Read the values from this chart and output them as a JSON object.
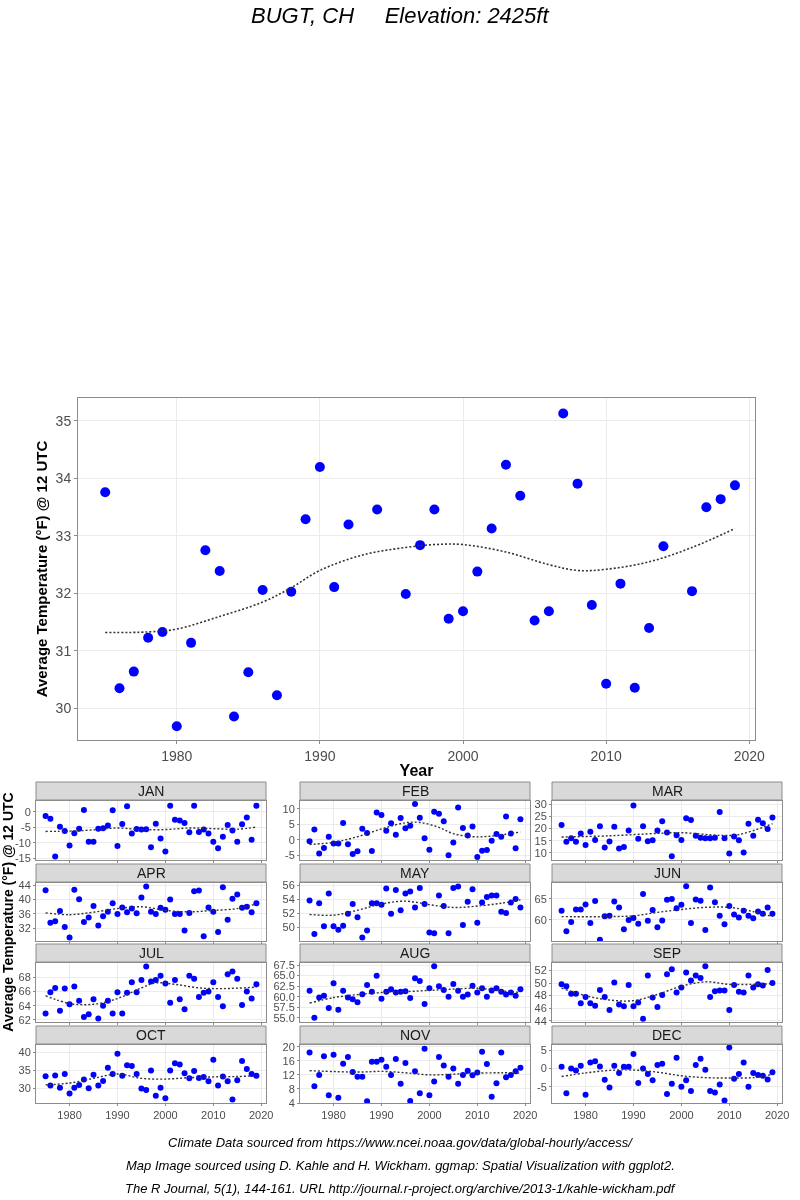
{
  "chart_data": [
    {
      "type": "scatter",
      "title": "BUGT, CH     Elevation: 2425ft",
      "xlabel": "Year",
      "ylabel": "Average Temperature (°F) @ 12 UTC",
      "grid": true,
      "x": [
        1975,
        1976,
        1977,
        1978,
        1979,
        1980,
        1981,
        1982,
        1983,
        1984,
        1985,
        1986,
        1987,
        1988,
        1989,
        1990,
        1991,
        1992,
        1993,
        1994,
        1995,
        1996,
        1997,
        1998,
        1999,
        2000,
        2001,
        2002,
        2003,
        2004,
        2005,
        2006,
        2007,
        2008,
        2009,
        2010,
        2011,
        2012,
        2013,
        2014,
        2015,
        2016,
        2017,
        2018,
        2019
      ],
      "xlim": [
        1973.1,
        2020.4
      ],
      "xticks": [
        1980,
        1990,
        2000,
        2010,
        2020
      ],
      "ylim": [
        29.45,
        35.4
      ],
      "yticks": [
        30,
        31,
        32,
        33,
        34,
        35
      ],
      "series": [
        {
          "color": "#0000ff",
          "marker": "circle",
          "values": [
            33.76,
            30.35,
            30.64,
            31.23,
            31.33,
            29.69,
            31.14,
            32.75,
            32.39,
            29.86,
            30.63,
            32.06,
            30.23,
            32.03,
            33.29,
            34.2,
            32.11,
            33.2,
            null,
            33.46,
            null,
            31.99,
            32.84,
            33.46,
            31.56,
            31.69,
            32.38,
            33.13,
            34.24,
            33.7,
            31.53,
            31.69,
            35.13,
            33.91,
            31.8,
            30.43,
            32.17,
            30.36,
            31.4,
            32.82,
            null,
            32.04,
            33.5,
            33.64,
            33.88
          ]
        },
        {
          "type": "line",
          "color": "#333333",
          "line_style": "dotted",
          "x": [
            1975,
            1978,
            1980,
            1983,
            1986,
            1988,
            1990,
            1993,
            1996,
            1998,
            2000,
            2003,
            2006,
            2008,
            2010,
            2013,
            2016,
            2019
          ],
          "values": [
            31.32,
            31.33,
            31.38,
            31.6,
            31.85,
            32.1,
            32.4,
            32.67,
            32.8,
            32.85,
            32.85,
            32.72,
            32.5,
            32.4,
            32.42,
            32.55,
            32.8,
            33.13
          ]
        }
      ],
      "annotations": [
        "Climate Data sourced from https://www.ncei.noaa.gov/data/global-hourly/access/",
        "Map Image sourced using D. Kahle and H. Wickham. ggmap: Spatial Visualization with ggplot2.",
        "The R Journal, 5(1), 144-161. URL http://journal.r-project.org/archive/2013-1/kahle-wickham.pdf"
      ]
    },
    {
      "type": "scatter",
      "title": "JAN",
      "grid": true,
      "tick_labels": "y",
      "x": [
        1975,
        1976,
        1977,
        1978,
        1979,
        1980,
        1981,
        1982,
        1983,
        1984,
        1985,
        1986,
        1987,
        1988,
        1989,
        1990,
        1991,
        1992,
        1993,
        1994,
        1995,
        1996,
        1997,
        1998,
        1999,
        2000,
        2001,
        2002,
        2003,
        2004,
        2005,
        2006,
        2007,
        2008,
        2009,
        2010,
        2011,
        2012,
        2013,
        2014,
        2015,
        2016,
        2017,
        2018,
        2019
      ],
      "xlim": [
        1973,
        2021
      ],
      "xticks": [
        1980,
        1990,
        2000,
        2010,
        2020
      ],
      "ylim": [
        -15.5,
        3.5
      ],
      "yticks": [
        -15,
        -10,
        -5,
        0
      ],
      "series": [
        {
          "color": "#0000ff",
          "marker": "circle",
          "values": [
            -1.3,
            -2.2,
            -14.4,
            -4.8,
            -6.2,
            -10.8,
            -6.9,
            -5.4,
            0.6,
            -9.6,
            -9.6,
            -5.4,
            -5.3,
            -4.4,
            0.5,
            -11,
            -3.9,
            1.8,
            -7,
            -5.5,
            -5.7,
            -5.6,
            -11.4,
            -3.8,
            -8.6,
            -12.8,
            2,
            -2.5,
            -2.8,
            -3.6,
            -6.6,
            2,
            -6.5,
            -5.7,
            -7,
            -9.6,
            -11.7,
            -8,
            -4.2,
            -6,
            -9.6,
            -4,
            -1.8,
            -9,
            2
          ]
        },
        {
          "type": "line",
          "color": "#333333",
          "line_style": "dotted",
          "x": [
            1975,
            1980,
            1985,
            1990,
            1995,
            2000,
            2005,
            2010,
            2015,
            2019
          ],
          "values": [
            -6.3,
            -6.2,
            -5.8,
            -5.2,
            -5.7,
            -5.7,
            -5.2,
            -5.4,
            -5.6,
            -4.9
          ]
        }
      ]
    },
    {
      "type": "scatter",
      "title": "FEB",
      "grid": true,
      "tick_labels": "y",
      "x": [
        1975,
        1976,
        1977,
        1978,
        1979,
        1980,
        1981,
        1982,
        1983,
        1984,
        1985,
        1986,
        1987,
        1988,
        1989,
        1990,
        1991,
        1992,
        1993,
        1994,
        1995,
        1996,
        1997,
        1998,
        1999,
        2000,
        2001,
        2002,
        2003,
        2004,
        2005,
        2006,
        2007,
        2008,
        2009,
        2010,
        2011,
        2012,
        2013,
        2014,
        2015,
        2016,
        2017,
        2018,
        2019
      ],
      "xlim": [
        1973,
        2021
      ],
      "xticks": [
        1980,
        1990,
        2000,
        2010,
        2020
      ],
      "ylim": [
        -6.5,
        12.5
      ],
      "yticks": [
        -5,
        0,
        5,
        10
      ],
      "series": [
        {
          "color": "#0000ff",
          "marker": "circle",
          "values": [
            -0.5,
            3.3,
            -4.4,
            -2.6,
            1,
            -1.2,
            -1.2,
            5.4,
            -1.4,
            -4.6,
            -3.7,
            3.6,
            2.2,
            -3.6,
            8.8,
            8,
            2.9,
            5.3,
            1.6,
            7,
            3.7,
            4.5,
            11.5,
            7.1,
            0.5,
            -3.2,
            9,
            8.4,
            6,
            -5,
            -0.9,
            10.4,
            3.8,
            1.4,
            4.3,
            -5.5,
            -3.5,
            -3.3,
            -0.3,
            1.9,
            1,
            7.5,
            2,
            -2.7,
            6.6
          ]
        },
        {
          "type": "line",
          "color": "#333333",
          "line_style": "dotted",
          "x": [
            1975,
            1980,
            1985,
            1990,
            1995,
            1998,
            2002,
            2005,
            2009,
            2013,
            2019
          ],
          "values": [
            -1.5,
            -0.8,
            1,
            3.5,
            5.5,
            5.6,
            4,
            2,
            1,
            1.2,
            2.5
          ]
        }
      ]
    },
    {
      "type": "scatter",
      "title": "MAR",
      "grid": true,
      "tick_labels": "y",
      "x": [
        1975,
        1976,
        1977,
        1978,
        1979,
        1980,
        1981,
        1982,
        1983,
        1984,
        1985,
        1986,
        1987,
        1988,
        1989,
        1990,
        1991,
        1992,
        1993,
        1994,
        1995,
        1996,
        1997,
        1998,
        1999,
        2000,
        2001,
        2002,
        2003,
        2004,
        2005,
        2006,
        2007,
        2008,
        2009,
        2010,
        2011,
        2012,
        2013,
        2014,
        2015,
        2016,
        2017,
        2018,
        2019
      ],
      "xlim": [
        1973,
        2021
      ],
      "xticks": [
        1980,
        1990,
        2000,
        2010,
        2020
      ],
      "ylim": [
        7,
        31.4
      ],
      "yticks": [
        10,
        15,
        20,
        25,
        30
      ],
      "series": [
        {
          "color": "#0000ff",
          "marker": "circle",
          "values": [
            21.5,
            14.5,
            16,
            14.5,
            18,
            13.2,
            18.7,
            15.3,
            21,
            12.2,
            14.7,
            20.8,
            11.8,
            12.4,
            19.2,
            29.5,
            15.8,
            21,
            14.8,
            15.2,
            19.2,
            23,
            18.4,
            8.5,
            17.2,
            15.3,
            24.3,
            23.5,
            17,
            16.2,
            16,
            16,
            16.2,
            26.8,
            16,
            9.7,
            16.7,
            15.2,
            10.1,
            22,
            17,
            23.6,
            22.2,
            19.8,
            24.6
          ]
        },
        {
          "type": "line",
          "color": "#333333",
          "line_style": "dotted",
          "x": [
            1975,
            1985,
            1995,
            2000,
            2008,
            2012,
            2019
          ],
          "values": [
            16.5,
            17,
            18,
            18.3,
            17.2,
            17.5,
            22
          ]
        }
      ]
    },
    {
      "type": "scatter",
      "title": "APR",
      "ylabel": "Average Temperature (°F) @ 12 UTC",
      "grid": true,
      "tick_labels": "y",
      "x": [
        1975,
        1976,
        1977,
        1978,
        1979,
        1980,
        1981,
        1982,
        1983,
        1984,
        1985,
        1986,
        1987,
        1988,
        1989,
        1990,
        1991,
        1992,
        1993,
        1994,
        1995,
        1996,
        1997,
        1998,
        1999,
        2000,
        2001,
        2002,
        2003,
        2004,
        2005,
        2006,
        2007,
        2008,
        2009,
        2010,
        2011,
        2012,
        2013,
        2014,
        2015,
        2016,
        2017,
        2018,
        2019
      ],
      "xlim": [
        1973,
        2021
      ],
      "xticks": [
        1980,
        1990,
        2000,
        2010,
        2020
      ],
      "ylim": [
        28.5,
        44.6
      ],
      "yticks": [
        32,
        36,
        40,
        44
      ],
      "series": [
        {
          "color": "#0000ff",
          "marker": "circle",
          "values": [
            42.6,
            33.6,
            34,
            36.8,
            32.4,
            29.5,
            42.7,
            40.1,
            33.8,
            35,
            38.2,
            32.8,
            35.4,
            36.6,
            39,
            36,
            37.8,
            36.5,
            37.5,
            36.2,
            40.6,
            43.6,
            36.6,
            36,
            37.7,
            37.2,
            40,
            36,
            36,
            31.4,
            36.3,
            42.3,
            42.5,
            29.8,
            37.8,
            36.6,
            31,
            43.4,
            34.4,
            40.2,
            41.4,
            37.7,
            38,
            36.5,
            39
          ]
        },
        {
          "type": "line",
          "color": "#333333",
          "line_style": "dotted",
          "x": [
            1975,
            1980,
            1985,
            1990,
            1995,
            2000,
            2005,
            2010,
            2015,
            2019
          ],
          "values": [
            36.3,
            35.8,
            36.5,
            37.5,
            38,
            37,
            36.6,
            37,
            37.5,
            38.8
          ]
        }
      ]
    },
    {
      "type": "scatter",
      "title": "MAY",
      "grid": true,
      "tick_labels": "y",
      "x": [
        1975,
        1976,
        1977,
        1978,
        1979,
        1980,
        1981,
        1982,
        1983,
        1984,
        1985,
        1986,
        1987,
        1988,
        1989,
        1990,
        1991,
        1992,
        1993,
        1994,
        1995,
        1996,
        1997,
        1998,
        1999,
        2000,
        2001,
        2002,
        2003,
        2004,
        2005,
        2006,
        2007,
        2008,
        2009,
        2010,
        2011,
        2012,
        2013,
        2014,
        2015,
        2016,
        2017,
        2018,
        2019
      ],
      "xlim": [
        1973,
        2021
      ],
      "xticks": [
        1980,
        1990,
        2000,
        2010,
        2020
      ],
      "ylim": [
        48,
        56.3
      ],
      "yticks": [
        50,
        52,
        54,
        56
      ],
      "series": [
        {
          "color": "#0000ff",
          "marker": "circle",
          "values": [
            53.8,
            49,
            53.4,
            50.1,
            54.8,
            50.1,
            49.6,
            50.2,
            51.9,
            53.3,
            51.4,
            48.5,
            49.5,
            53.4,
            53.4,
            53.2,
            55.5,
            51.9,
            55.3,
            52.4,
            54.8,
            55.1,
            52.8,
            55.6,
            53.3,
            49.2,
            49.1,
            54.5,
            53,
            49.1,
            55.6,
            55.8,
            50.3,
            53.6,
            55.4,
            50.6,
            53.5,
            54.3,
            54.5,
            54.5,
            52.2,
            52,
            53.5,
            54,
            52.8
          ]
        },
        {
          "type": "line",
          "color": "#333333",
          "line_style": "dotted",
          "x": [
            1975,
            1980,
            1985,
            1990,
            1995,
            2000,
            2005,
            2010,
            2015,
            2019
          ],
          "values": [
            51.8,
            51.7,
            52.4,
            53.3,
            53.7,
            53.2,
            52.8,
            53,
            53.4,
            53.9
          ]
        }
      ]
    },
    {
      "type": "scatter",
      "title": "JUN",
      "grid": true,
      "tick_labels": "y",
      "x": [
        1975,
        1976,
        1977,
        1978,
        1979,
        1980,
        1981,
        1982,
        1983,
        1984,
        1985,
        1986,
        1987,
        1988,
        1989,
        1990,
        1991,
        1992,
        1993,
        1994,
        1995,
        1996,
        1997,
        1998,
        1999,
        2000,
        2001,
        2002,
        2003,
        2004,
        2005,
        2006,
        2007,
        2008,
        2009,
        2010,
        2011,
        2012,
        2013,
        2014,
        2015,
        2016,
        2017,
        2018,
        2019
      ],
      "xlim": [
        1973,
        2021
      ],
      "xticks": [
        1980,
        1990,
        2000,
        2010,
        2020
      ],
      "ylim": [
        55,
        68.8
      ],
      "yticks": [
        60,
        65
      ],
      "series": [
        {
          "color": "#0000ff",
          "marker": "circle",
          "values": [
            62.2,
            57.3,
            59.5,
            62.5,
            62.5,
            63.7,
            59.3,
            64.5,
            55.3,
            60.9,
            61,
            64.4,
            63,
            57.8,
            60,
            60.5,
            59.1,
            66.2,
            59.8,
            62.4,
            58.3,
            59.9,
            64.8,
            65,
            62.8,
            63.6,
            68,
            59.3,
            64.9,
            64.6,
            57.6,
            67.7,
            64.2,
            61,
            59,
            63.3,
            61.3,
            60.6,
            62.2,
            61,
            60.4,
            62,
            61.5,
            63,
            61.5
          ]
        },
        {
          "type": "line",
          "color": "#333333",
          "line_style": "dotted",
          "x": [
            1975,
            1985,
            1990,
            1995,
            2000,
            2005,
            2010,
            2015,
            2019
          ],
          "values": [
            60.8,
            60.8,
            61,
            61.8,
            62.5,
            63,
            63,
            62,
            60.8
          ]
        }
      ]
    },
    {
      "type": "scatter",
      "title": "JUL",
      "grid": true,
      "tick_labels": "y",
      "x": [
        1975,
        1976,
        1977,
        1978,
        1979,
        1980,
        1981,
        1982,
        1983,
        1984,
        1985,
        1986,
        1987,
        1988,
        1989,
        1990,
        1991,
        1992,
        1993,
        1994,
        1995,
        1996,
        1997,
        1998,
        1999,
        2000,
        2001,
        2002,
        2003,
        2004,
        2005,
        2006,
        2007,
        2008,
        2009,
        2010,
        2011,
        2012,
        2013,
        2014,
        2015,
        2016,
        2017,
        2018,
        2019
      ],
      "xlim": [
        1973,
        2021
      ],
      "xticks": [
        1980,
        1990,
        2000,
        2010,
        2020
      ],
      "ylim": [
        61.7,
        70
      ],
      "yticks": [
        62,
        64,
        66,
        68
      ],
      "series": [
        {
          "color": "#0000ff",
          "marker": "circle",
          "values": [
            62.9,
            65.9,
            66.5,
            63.3,
            66.4,
            64.2,
            66.7,
            64.7,
            62.4,
            62.8,
            64.9,
            62.2,
            64,
            64.7,
            62.9,
            65.9,
            62.9,
            65.8,
            67.3,
            65.9,
            67.6,
            69.5,
            67.4,
            67.6,
            68.2,
            67.1,
            64.4,
            67.6,
            64.9,
            63.5,
            68.2,
            67.8,
            65.2,
            65.8,
            66,
            67.3,
            65.2,
            63.9,
            68.4,
            68.8,
            67.8,
            64.1,
            66,
            65,
            67
          ]
        },
        {
          "type": "line",
          "color": "#333333",
          "line_style": "dotted",
          "x": [
            1975,
            1980,
            1985,
            1990,
            1995,
            1998,
            2002,
            2007,
            2012,
            2019
          ],
          "values": [
            65.4,
            64.3,
            64.2,
            65,
            66.5,
            67.2,
            67,
            66.5,
            66.4,
            66.6
          ]
        }
      ]
    },
    {
      "type": "scatter",
      "title": "AUG",
      "grid": true,
      "tick_labels": "y",
      "x": [
        1975,
        1976,
        1977,
        1978,
        1979,
        1980,
        1981,
        1982,
        1983,
        1984,
        1985,
        1986,
        1987,
        1988,
        1989,
        1990,
        1991,
        1992,
        1993,
        1994,
        1995,
        1996,
        1997,
        1998,
        1999,
        2000,
        2001,
        2002,
        2003,
        2004,
        2005,
        2006,
        2007,
        2008,
        2009,
        2010,
        2011,
        2012,
        2013,
        2014,
        2015,
        2016,
        2017,
        2018,
        2019
      ],
      "xlim": [
        1973,
        2021
      ],
      "xticks": [
        1980,
        1990,
        2000,
        2010,
        2020
      ],
      "ylim": [
        54,
        68
      ],
      "yticks": [
        {
          "value": 55,
          "label": "55.0"
        },
        57.5,
        {
          "value": 60,
          "label": "60.0"
        },
        62.5,
        {
          "value": 65,
          "label": "65.0"
        },
        67.5
      ],
      "series": [
        {
          "color": "#0000ff",
          "marker": "circle",
          "values": [
            61.4,
            55,
            59.8,
            60.2,
            57.3,
            63.2,
            56.9,
            61.4,
            59.8,
            59.4,
            58.7,
            60.6,
            62.8,
            61.2,
            65,
            59.5,
            61.2,
            61.8,
            61,
            61.2,
            61.3,
            59.7,
            64.4,
            63.7,
            58.3,
            62,
            67.2,
            62.5,
            61.6,
            60,
            63,
            61.4,
            60,
            60.5,
            62.6,
            61,
            62,
            60,
            61.5,
            62,
            61.2,
            60.5,
            61,
            60.2,
            61.8
          ]
        },
        {
          "type": "line",
          "color": "#333333",
          "line_style": "dotted",
          "x": [
            1975,
            1980,
            1985,
            1990,
            1995,
            2000,
            2005,
            2010,
            2015,
            2019
          ],
          "values": [
            58.5,
            59.8,
            60.5,
            61,
            61.2,
            61.5,
            61.8,
            62,
            61.4,
            61
          ]
        }
      ]
    },
    {
      "type": "scatter",
      "title": "SEP",
      "grid": true,
      "tick_labels": "y",
      "x": [
        1975,
        1976,
        1977,
        1978,
        1979,
        1980,
        1981,
        1982,
        1983,
        1984,
        1985,
        1986,
        1987,
        1988,
        1989,
        1990,
        1991,
        1992,
        1993,
        1994,
        1995,
        1996,
        1997,
        1998,
        1999,
        2000,
        2001,
        2002,
        2003,
        2004,
        2005,
        2006,
        2007,
        2008,
        2009,
        2010,
        2011,
        2012,
        2013,
        2014,
        2015,
        2016,
        2017,
        2018,
        2019
      ],
      "xlim": [
        1973,
        2021
      ],
      "xticks": [
        1980,
        1990,
        2000,
        2010,
        2020
      ],
      "ylim": [
        43.8,
        53.2
      ],
      "yticks": [
        44,
        46,
        48,
        50,
        52
      ],
      "series": [
        {
          "color": "#0000ff",
          "marker": "circle",
          "values": [
            49.8,
            49.5,
            48.3,
            48.3,
            46.8,
            47.8,
            46.8,
            46.4,
            48.9,
            47.8,
            45.7,
            50.1,
            46.6,
            46.3,
            49.7,
            46.3,
            46.9,
            44.3,
            51.2,
            47.7,
            46.2,
            48.1,
            51.4,
            52.2,
            48.5,
            49.3,
            51.7,
            50.4,
            51.2,
            50.8,
            52.7,
            47.8,
            48.7,
            48.8,
            48.8,
            45.7,
            49.7,
            48.6,
            48.5,
            51.2,
            49.3,
            49.8,
            49.6,
            52.1,
            50
          ]
        },
        {
          "type": "line",
          "color": "#333333",
          "line_style": "dotted",
          "x": [
            1975,
            1980,
            1985,
            1990,
            1995,
            2000,
            2005,
            2010,
            2015,
            2019
          ],
          "values": [
            49.2,
            48,
            47.3,
            47.2,
            48.2,
            49.5,
            50.2,
            49.8,
            49.8,
            49.9
          ]
        }
      ]
    },
    {
      "type": "scatter",
      "title": "OCT",
      "grid": true,
      "x": [
        1975,
        1976,
        1977,
        1978,
        1979,
        1980,
        1981,
        1982,
        1983,
        1984,
        1985,
        1986,
        1987,
        1988,
        1989,
        1990,
        1991,
        1992,
        1993,
        1994,
        1995,
        1996,
        1997,
        1998,
        1999,
        2000,
        2001,
        2002,
        2003,
        2004,
        2005,
        2006,
        2007,
        2008,
        2009,
        2010,
        2011,
        2012,
        2013,
        2014,
        2015,
        2016,
        2017,
        2018,
        2019
      ],
      "xlim": [
        1973,
        2021
      ],
      "xticks": [
        1980,
        1990,
        2000,
        2010,
        2020
      ],
      "ylim": [
        26,
        42
      ],
      "yticks": [
        30,
        35,
        40
      ],
      "series": [
        {
          "color": "#0000ff",
          "marker": "circle",
          "values": [
            33.4,
            30.8,
            33.6,
            30.2,
            34,
            28.6,
            30.2,
            31,
            32.5,
            30.1,
            33.8,
            30.8,
            32.1,
            35.7,
            34,
            39.6,
            33.5,
            36.4,
            36.2,
            34,
            30,
            29.6,
            35,
            28,
            30.2,
            27.3,
            35,
            37,
            36.6,
            34.2,
            32.8,
            34.8,
            32.9,
            33.2,
            32,
            37.9,
            30.8,
            33.3,
            32,
            27,
            32.3,
            37.6,
            35.4,
            34,
            33.5
          ]
        },
        {
          "type": "line",
          "color": "#333333",
          "line_style": "dotted",
          "x": [
            1975,
            1980,
            1985,
            1990,
            1995,
            2000,
            2005,
            2010,
            2015,
            2019
          ],
          "values": [
            31,
            31.5,
            32.8,
            34,
            32.8,
            32.6,
            33,
            33.2,
            33.3,
            33.5
          ]
        }
      ]
    },
    {
      "type": "scatter",
      "title": "NOV",
      "grid": true,
      "x": [
        1975,
        1976,
        1977,
        1978,
        1979,
        1980,
        1981,
        1982,
        1983,
        1984,
        1985,
        1986,
        1987,
        1988,
        1989,
        1990,
        1991,
        1992,
        1993,
        1994,
        1995,
        1996,
        1997,
        1998,
        1999,
        2000,
        2001,
        2002,
        2003,
        2004,
        2005,
        2006,
        2007,
        2008,
        2009,
        2010,
        2011,
        2012,
        2013,
        2014,
        2015,
        2016,
        2017,
        2018,
        2019
      ],
      "xlim": [
        1973,
        2021
      ],
      "xticks": [
        1980,
        1990,
        2000,
        2010,
        2020
      ],
      "ylim": [
        4,
        20.5
      ],
      "yticks": [
        4,
        8,
        12,
        16,
        20
      ],
      "series": [
        {
          "color": "#0000ff",
          "marker": "circle",
          "values": [
            18.4,
            8.8,
            12,
            17.3,
            6.2,
            17.7,
            5.5,
            15.2,
            17.1,
            12.8,
            11.5,
            11.5,
            4.5,
            15.7,
            15.7,
            16.3,
            14.3,
            12,
            16.5,
            9.5,
            15.4,
            4.6,
            13,
            6.8,
            19.4,
            6.2,
            10.1,
            17.1,
            14.7,
            11.5,
            13.8,
            9.5,
            12,
            13.2,
            11.9,
            12.7,
            18.6,
            15.1,
            5.8,
            9.6,
            18.4,
            11.3,
            12,
            13,
            14
          ]
        },
        {
          "type": "line",
          "color": "#333333",
          "line_style": "dotted",
          "x": [
            1975,
            1985,
            1990,
            1995,
            2000,
            2005,
            2010,
            2015,
            2019
          ],
          "values": [
            13.2,
            12.8,
            13,
            12.6,
            12,
            12.2,
            12.5,
            12.6,
            12.5
          ]
        }
      ]
    },
    {
      "type": "scatter",
      "title": "DEC",
      "grid": true,
      "x": [
        1975,
        1976,
        1977,
        1978,
        1979,
        1980,
        1981,
        1982,
        1983,
        1984,
        1985,
        1986,
        1987,
        1988,
        1989,
        1990,
        1991,
        1992,
        1993,
        1994,
        1995,
        1996,
        1997,
        1998,
        1999,
        2000,
        2001,
        2002,
        2003,
        2004,
        2005,
        2006,
        2007,
        2008,
        2009,
        2010,
        2011,
        2012,
        2013,
        2014,
        2015,
        2016,
        2017,
        2018,
        2019
      ],
      "xlim": [
        1973,
        2021
      ],
      "xticks": [
        1980,
        1990,
        2000,
        2010,
        2020
      ],
      "ylim": [
        -9.5,
        6.5
      ],
      "yticks": [
        -5,
        0,
        5
      ],
      "series": [
        {
          "color": "#0000ff",
          "marker": "circle",
          "values": [
            0.5,
            -6.8,
            0,
            -0.5,
            0.8,
            -7.2,
            1.7,
            2,
            0.6,
            -3.1,
            -5.2,
            0.8,
            -1.2,
            0.5,
            0.5,
            4,
            -4,
            0,
            -1.5,
            -3.2,
            1,
            1.3,
            -7,
            -4.2,
            3,
            -5,
            -3.2,
            -6.2,
            1,
            2.7,
            -0.3,
            -6.2,
            -6.6,
            -4.4,
            -8.8,
            5.8,
            -2.8,
            -1.5,
            1.7,
            -5,
            -1.2,
            -1.8,
            -2,
            -3,
            -1
          ]
        },
        {
          "type": "line",
          "color": "#333333",
          "line_style": "dotted",
          "x": [
            1975,
            1980,
            1985,
            1990,
            1995,
            2000,
            2005,
            2010,
            2015,
            2019
          ],
          "values": [
            -2.2,
            -1.2,
            -0.5,
            -0.4,
            -1,
            -2,
            -2.5,
            -2.6,
            -2.5,
            -1.6
          ]
        }
      ]
    }
  ]
}
